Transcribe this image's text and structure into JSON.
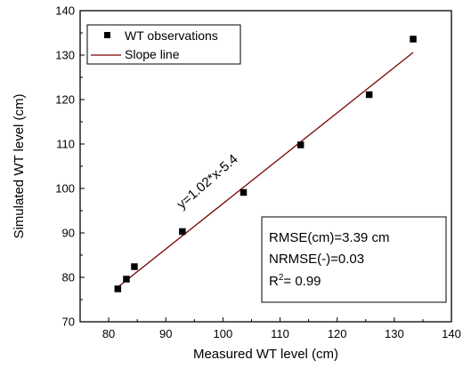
{
  "chart_data": {
    "type": "scatter",
    "title": "",
    "xlabel": "Measured WT level (cm)",
    "ylabel": "Simulated WT level (cm)",
    "xlim": [
      75,
      140
    ],
    "ylim": [
      70,
      140
    ],
    "xticks": [
      80,
      90,
      100,
      110,
      120,
      130,
      140
    ],
    "yticks": [
      70,
      80,
      90,
      100,
      110,
      120,
      130,
      140
    ],
    "grid": false,
    "legend_position": "top-left",
    "series": [
      {
        "name": "WT observations",
        "marker": "square",
        "color": "#000000",
        "x": [
          81.6,
          83.1,
          84.5,
          92.9,
          103.6,
          113.6,
          125.6,
          133.3
        ],
        "y": [
          77.4,
          79.6,
          82.4,
          90.3,
          99.1,
          109.8,
          121.1,
          133.6
        ]
      },
      {
        "name": "Slope line",
        "type": "line",
        "color": "#7a0000",
        "x": [
          81.6,
          133.3
        ],
        "y": [
          77.8,
          130.6
        ]
      }
    ],
    "annotations": {
      "equation": "y=1.02*x-5.4",
      "rmse": "RMSE(cm)=3.39 cm",
      "nrmse": "NRMSE(-)=0.03",
      "r2_label": "R",
      "r2_sup": "2",
      "r2_value": "= 0.99"
    }
  }
}
